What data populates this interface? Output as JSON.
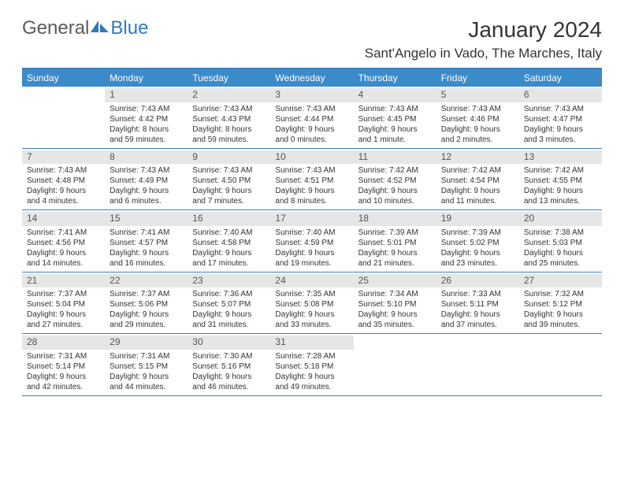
{
  "brand": {
    "name_a": "General",
    "name_b": "Blue",
    "color_a": "#5a5a5a",
    "color_b": "#2f79bd"
  },
  "title": "January 2024",
  "location": "Sant'Angelo in Vado, The Marches, Italy",
  "weekday_bg": "#3b8bc9",
  "weekday_fg": "#ffffff",
  "border_color": "#3b7fbf",
  "daynum_bg": "#e6e6e6",
  "weekdays": [
    "Sunday",
    "Monday",
    "Tuesday",
    "Wednesday",
    "Thursday",
    "Friday",
    "Saturday"
  ],
  "weeks": [
    [
      {
        "n": "",
        "lines": []
      },
      {
        "n": "1",
        "lines": [
          "Sunrise: 7:43 AM",
          "Sunset: 4:42 PM",
          "Daylight: 8 hours",
          "and 59 minutes."
        ]
      },
      {
        "n": "2",
        "lines": [
          "Sunrise: 7:43 AM",
          "Sunset: 4:43 PM",
          "Daylight: 8 hours",
          "and 59 minutes."
        ]
      },
      {
        "n": "3",
        "lines": [
          "Sunrise: 7:43 AM",
          "Sunset: 4:44 PM",
          "Daylight: 9 hours",
          "and 0 minutes."
        ]
      },
      {
        "n": "4",
        "lines": [
          "Sunrise: 7:43 AM",
          "Sunset: 4:45 PM",
          "Daylight: 9 hours",
          "and 1 minute."
        ]
      },
      {
        "n": "5",
        "lines": [
          "Sunrise: 7:43 AM",
          "Sunset: 4:46 PM",
          "Daylight: 9 hours",
          "and 2 minutes."
        ]
      },
      {
        "n": "6",
        "lines": [
          "Sunrise: 7:43 AM",
          "Sunset: 4:47 PM",
          "Daylight: 9 hours",
          "and 3 minutes."
        ]
      }
    ],
    [
      {
        "n": "7",
        "lines": [
          "Sunrise: 7:43 AM",
          "Sunset: 4:48 PM",
          "Daylight: 9 hours",
          "and 4 minutes."
        ]
      },
      {
        "n": "8",
        "lines": [
          "Sunrise: 7:43 AM",
          "Sunset: 4:49 PM",
          "Daylight: 9 hours",
          "and 6 minutes."
        ]
      },
      {
        "n": "9",
        "lines": [
          "Sunrise: 7:43 AM",
          "Sunset: 4:50 PM",
          "Daylight: 9 hours",
          "and 7 minutes."
        ]
      },
      {
        "n": "10",
        "lines": [
          "Sunrise: 7:43 AM",
          "Sunset: 4:51 PM",
          "Daylight: 9 hours",
          "and 8 minutes."
        ]
      },
      {
        "n": "11",
        "lines": [
          "Sunrise: 7:42 AM",
          "Sunset: 4:52 PM",
          "Daylight: 9 hours",
          "and 10 minutes."
        ]
      },
      {
        "n": "12",
        "lines": [
          "Sunrise: 7:42 AM",
          "Sunset: 4:54 PM",
          "Daylight: 9 hours",
          "and 11 minutes."
        ]
      },
      {
        "n": "13",
        "lines": [
          "Sunrise: 7:42 AM",
          "Sunset: 4:55 PM",
          "Daylight: 9 hours",
          "and 13 minutes."
        ]
      }
    ],
    [
      {
        "n": "14",
        "lines": [
          "Sunrise: 7:41 AM",
          "Sunset: 4:56 PM",
          "Daylight: 9 hours",
          "and 14 minutes."
        ]
      },
      {
        "n": "15",
        "lines": [
          "Sunrise: 7:41 AM",
          "Sunset: 4:57 PM",
          "Daylight: 9 hours",
          "and 16 minutes."
        ]
      },
      {
        "n": "16",
        "lines": [
          "Sunrise: 7:40 AM",
          "Sunset: 4:58 PM",
          "Daylight: 9 hours",
          "and 17 minutes."
        ]
      },
      {
        "n": "17",
        "lines": [
          "Sunrise: 7:40 AM",
          "Sunset: 4:59 PM",
          "Daylight: 9 hours",
          "and 19 minutes."
        ]
      },
      {
        "n": "18",
        "lines": [
          "Sunrise: 7:39 AM",
          "Sunset: 5:01 PM",
          "Daylight: 9 hours",
          "and 21 minutes."
        ]
      },
      {
        "n": "19",
        "lines": [
          "Sunrise: 7:39 AM",
          "Sunset: 5:02 PM",
          "Daylight: 9 hours",
          "and 23 minutes."
        ]
      },
      {
        "n": "20",
        "lines": [
          "Sunrise: 7:38 AM",
          "Sunset: 5:03 PM",
          "Daylight: 9 hours",
          "and 25 minutes."
        ]
      }
    ],
    [
      {
        "n": "21",
        "lines": [
          "Sunrise: 7:37 AM",
          "Sunset: 5:04 PM",
          "Daylight: 9 hours",
          "and 27 minutes."
        ]
      },
      {
        "n": "22",
        "lines": [
          "Sunrise: 7:37 AM",
          "Sunset: 5:06 PM",
          "Daylight: 9 hours",
          "and 29 minutes."
        ]
      },
      {
        "n": "23",
        "lines": [
          "Sunrise: 7:36 AM",
          "Sunset: 5:07 PM",
          "Daylight: 9 hours",
          "and 31 minutes."
        ]
      },
      {
        "n": "24",
        "lines": [
          "Sunrise: 7:35 AM",
          "Sunset: 5:08 PM",
          "Daylight: 9 hours",
          "and 33 minutes."
        ]
      },
      {
        "n": "25",
        "lines": [
          "Sunrise: 7:34 AM",
          "Sunset: 5:10 PM",
          "Daylight: 9 hours",
          "and 35 minutes."
        ]
      },
      {
        "n": "26",
        "lines": [
          "Sunrise: 7:33 AM",
          "Sunset: 5:11 PM",
          "Daylight: 9 hours",
          "and 37 minutes."
        ]
      },
      {
        "n": "27",
        "lines": [
          "Sunrise: 7:32 AM",
          "Sunset: 5:12 PM",
          "Daylight: 9 hours",
          "and 39 minutes."
        ]
      }
    ],
    [
      {
        "n": "28",
        "lines": [
          "Sunrise: 7:31 AM",
          "Sunset: 5:14 PM",
          "Daylight: 9 hours",
          "and 42 minutes."
        ]
      },
      {
        "n": "29",
        "lines": [
          "Sunrise: 7:31 AM",
          "Sunset: 5:15 PM",
          "Daylight: 9 hours",
          "and 44 minutes."
        ]
      },
      {
        "n": "30",
        "lines": [
          "Sunrise: 7:30 AM",
          "Sunset: 5:16 PM",
          "Daylight: 9 hours",
          "and 46 minutes."
        ]
      },
      {
        "n": "31",
        "lines": [
          "Sunrise: 7:28 AM",
          "Sunset: 5:18 PM",
          "Daylight: 9 hours",
          "and 49 minutes."
        ]
      },
      {
        "n": "",
        "lines": []
      },
      {
        "n": "",
        "lines": []
      },
      {
        "n": "",
        "lines": []
      }
    ]
  ]
}
